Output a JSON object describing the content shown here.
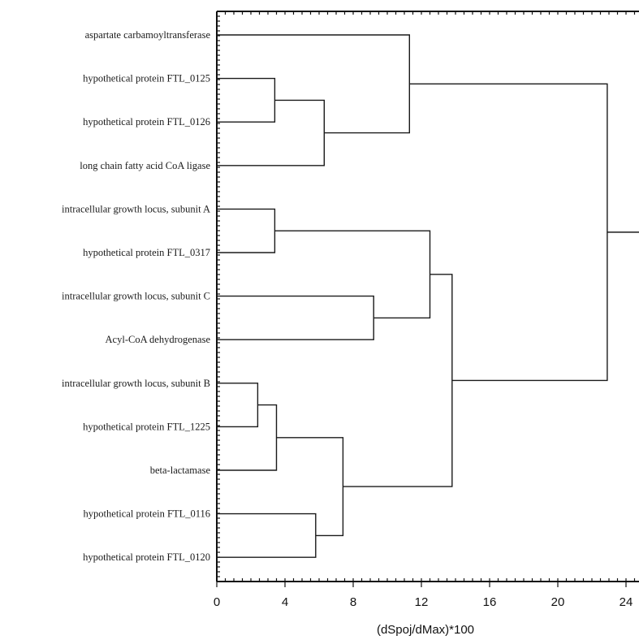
{
  "chart_data": {
    "type": "dendrogram",
    "title": "",
    "xlabel": "(dSpoj/dMax)*100",
    "ylabel": "",
    "xlim": [
      0,
      25
    ],
    "xticks": [
      0,
      4,
      8,
      12,
      16,
      20,
      24
    ],
    "leaves": [
      "aspartate carbamoyltransferase",
      "hypothetical protein FTL_0125",
      "hypothetical protein FTL_0126",
      "long chain fatty acid CoA ligase",
      "intracellular growth locus, subunit A",
      "hypothetical protein FTL_0317",
      "intracellular growth locus, subunit C",
      "Acyl-CoA dehydrogenase",
      "intracellular growth locus, subunit B",
      "hypothetical protein FTL_1225",
      "beta-lactamase",
      "hypothetical protein FTL_0116",
      "hypothetical protein FTL_0120"
    ],
    "merges": [
      {
        "id": "m1",
        "left": "L1",
        "right": "L2",
        "height": 3.4
      },
      {
        "id": "m2",
        "left": "m1",
        "right": "L3",
        "height": 6.3
      },
      {
        "id": "m3",
        "left": "L0",
        "right": "m2",
        "height": 11.3
      },
      {
        "id": "m4",
        "left": "L4",
        "right": "L5",
        "height": 3.4
      },
      {
        "id": "m5",
        "left": "L6",
        "right": "L7",
        "height": 9.2
      },
      {
        "id": "m6",
        "left": "m4",
        "right": "m5",
        "height": 12.5
      },
      {
        "id": "m7",
        "left": "L8",
        "right": "L9",
        "height": 2.4
      },
      {
        "id": "m8",
        "left": "m7",
        "right": "L10",
        "height": 3.5
      },
      {
        "id": "m9",
        "left": "L11",
        "right": "L12",
        "height": 5.8
      },
      {
        "id": "m10",
        "left": "m8",
        "right": "m9",
        "height": 7.4
      },
      {
        "id": "m11",
        "left": "m6",
        "right": "m10",
        "height": 13.8
      },
      {
        "id": "m12",
        "left": "m3",
        "right": "m11",
        "height": 22.9
      }
    ],
    "root_tail_to": 25
  }
}
